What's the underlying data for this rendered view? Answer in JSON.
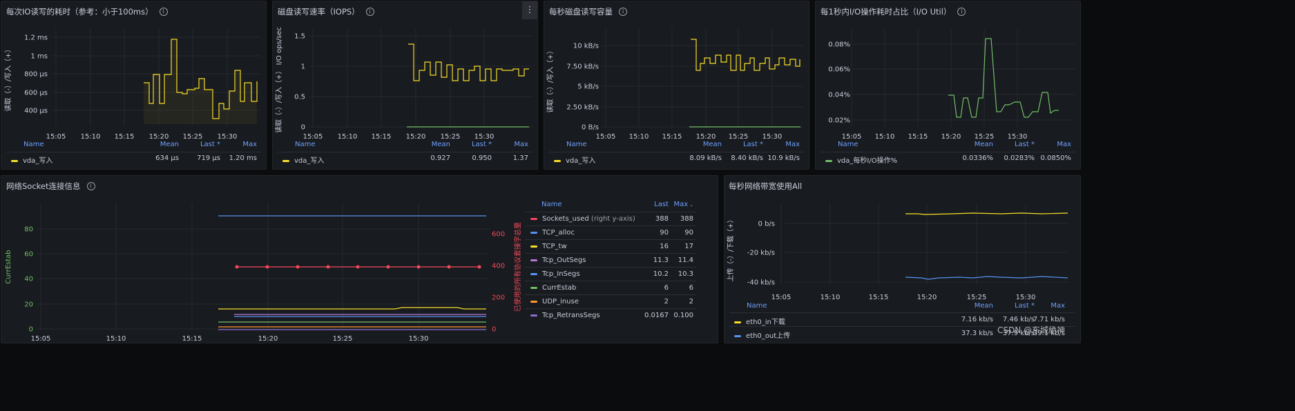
{
  "colors": {
    "yellow": "#fade2a",
    "green": "#73bf69",
    "blue": "#5794f2",
    "red": "#f2495c",
    "purple": "#b877d9",
    "orange": "#ff9830",
    "grid": "#26292e",
    "axis": "#ccccdc"
  },
  "time_ticks": [
    "15:05",
    "15:10",
    "15:15",
    "15:20",
    "15:25",
    "15:30"
  ],
  "legend_headers": {
    "name": "Name",
    "mean": "Mean",
    "last": "Last *",
    "max": "Max"
  },
  "p1": {
    "title": "每次IO读写的耗时（参考：小于100ms）",
    "ylabel": "读取（-）/写入（+）",
    "yticks": [
      "1.2 ms",
      "1 ms",
      "800 µs",
      "600 µs",
      "400 µs"
    ],
    "legend": {
      "name": "vda_写入",
      "mean": "634 µs",
      "last": "719 µs",
      "max": "1.20 ms"
    }
  },
  "p2": {
    "title": "磁盘读写速率（IOPS）",
    "ylabel": "读取（-）/写入（+） I/O ops/sec",
    "yticks": [
      "1.5",
      "1",
      "0.5",
      "0"
    ],
    "legend": {
      "name": "vda_写入",
      "mean": "0.927",
      "last": "0.950",
      "max": "1.37"
    }
  },
  "p3": {
    "title": "每秒磁盘读写容量",
    "ylabel": "读取（-）/写入（+）",
    "yticks": [
      "10 kB/s",
      "7.50 kB/s",
      "5 kB/s",
      "2.50 kB/s",
      "0 B/s"
    ],
    "legend": {
      "name": "vda_写入",
      "mean": "8.09 kB/s",
      "last": "8.40 kB/s",
      "max": "10.9 kB/s"
    }
  },
  "p4": {
    "title": "每1秒内I/O操作耗时占比（I/O Util）",
    "yticks": [
      "0.08%",
      "0.06%",
      "0.04%",
      "0.02%"
    ],
    "legend": {
      "name": "vda_每秒I/O操作%",
      "mean": "0.0336%",
      "last": "0.0283%",
      "max": "0.0850%"
    }
  },
  "p5": {
    "title": "网络Socket连接信息",
    "ylabel_left": "CurrEstab",
    "ylabel_right": "已使用的所有协议套接字总量",
    "yticks_left": [
      "80",
      "60",
      "40",
      "20",
      "0"
    ],
    "yticks_right": [
      "600",
      "400",
      "200",
      "0"
    ],
    "legend_headers": {
      "name": "Name",
      "last": "Last",
      "max": "Max"
    },
    "legend": [
      {
        "name": "Sockets_used",
        "suffix": "(right y-axis)",
        "color": "#f2495c",
        "last": "388",
        "max": "388"
      },
      {
        "name": "TCP_alloc",
        "color": "#5794f2",
        "last": "90",
        "max": "90"
      },
      {
        "name": "TCP_tw",
        "color": "#fade2a",
        "last": "16",
        "max": "17"
      },
      {
        "name": "Tcp_OutSegs",
        "color": "#b877d9",
        "last": "11.3",
        "max": "11.4"
      },
      {
        "name": "Tcp_InSegs",
        "color": "#5794f2",
        "last": "10.2",
        "max": "10.3"
      },
      {
        "name": "CurrEstab",
        "color": "#73bf69",
        "last": "6",
        "max": "6"
      },
      {
        "name": "UDP_inuse",
        "color": "#ff9830",
        "last": "2",
        "max": "2"
      },
      {
        "name": "Tcp_RetransSegs",
        "color": "#8f6bd1",
        "last": "0.0167",
        "max": "0.100"
      }
    ]
  },
  "p6": {
    "title": "每秒网络带宽使用All",
    "ylabel": "上传（-）/下载（+）",
    "yticks": [
      "0 b/s",
      "-20 kb/s",
      "-40 kb/s"
    ],
    "legend": [
      {
        "name": "eth0_in下载",
        "color": "#fade2a",
        "mean": "7.16 kb/s",
        "last": "7.46 kb/s",
        "max": "7.71 kb/s"
      },
      {
        "name": "eth0_out上传",
        "color": "#5794f2",
        "mean": "37.3 kb/s",
        "last": "37.9 kb/s",
        "max": "39.1 kb/s"
      }
    ]
  },
  "watermark": "CSDN @东城绝神",
  "menu_icon": "more-vertical-icon"
}
